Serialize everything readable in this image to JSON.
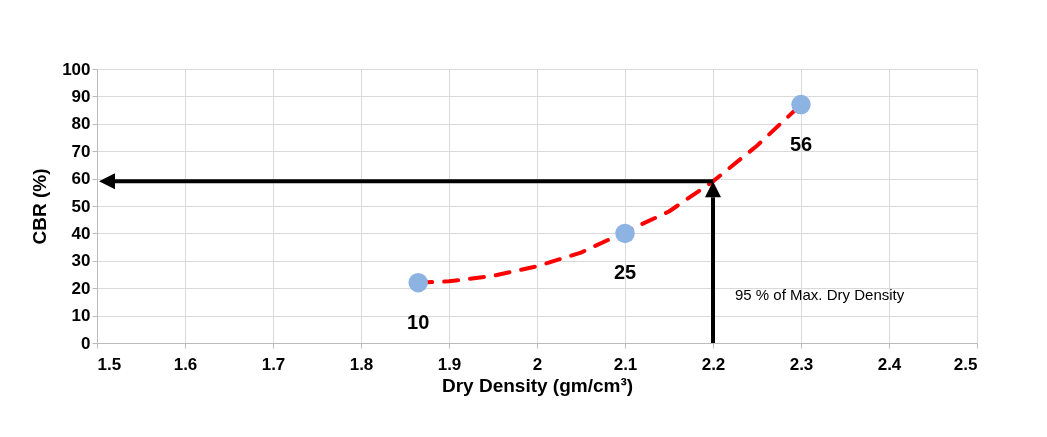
{
  "chart_data": {
    "type": "scatter",
    "xlabel": "Dry Density (gm/cm³)",
    "ylabel": "CBR (%)",
    "xlim": [
      1.5,
      2.5
    ],
    "xticks": [
      1.5,
      1.6,
      1.7,
      1.8,
      1.9,
      2,
      2.1,
      2.2,
      2.3,
      2.4,
      2.5
    ],
    "ylim": [
      0,
      100
    ],
    "yticks": [
      0,
      10,
      20,
      30,
      40,
      50,
      60,
      70,
      80,
      90,
      100
    ],
    "grid": true,
    "series": [
      {
        "type": "line",
        "color": "#ff0000",
        "line_style": "dashed",
        "marker": "none",
        "x": [
          1.865,
          1.9,
          1.95,
          2.0,
          2.05,
          2.15,
          2.2,
          2.25,
          2.3
        ],
        "values": [
          22,
          22.5,
          24.5,
          28,
          33,
          48,
          59,
          72,
          87
        ]
      },
      {
        "color": "#8db3e2",
        "marker": "circle",
        "x": [
          1.865,
          2.1,
          2.3
        ],
        "values": [
          22,
          40,
          87
        ]
      }
    ],
    "ref_lines": [
      {
        "axis": "x",
        "value": 2.2,
        "label": "95 % of Max. Dry Density",
        "color": "#000000",
        "line_style": "solid"
      },
      {
        "axis": "y",
        "value": 59,
        "color": "#000000",
        "line_style": "solid"
      }
    ],
    "annotations": [
      {
        "text": "10",
        "x": 1.865,
        "y": 22
      },
      {
        "text": "25",
        "x": 2.1,
        "y": 40
      },
      {
        "text": "56",
        "x": 2.3,
        "y": 87
      }
    ]
  }
}
